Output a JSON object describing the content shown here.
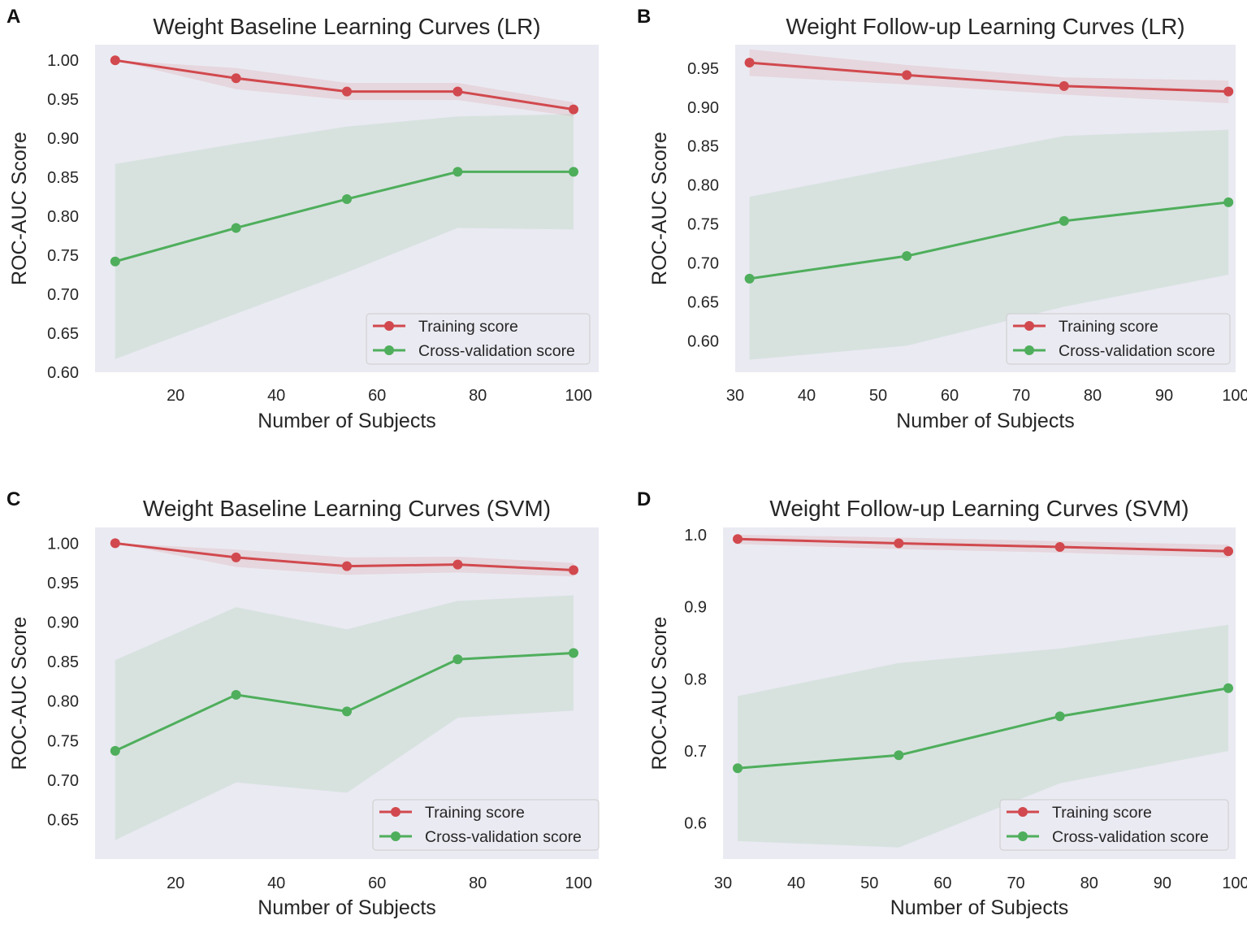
{
  "figure": {
    "colors": {
      "plot_bg": "#eaeaf2",
      "training": "#d1494e",
      "training_band": "#d1494e",
      "cv": "#4fae5c",
      "cv_band": "#4fae5c",
      "legend_bg": "#eaeaf2",
      "legend_border": "#cccccc"
    },
    "panels": [
      {
        "letter": "A",
        "chart_data": {
          "type": "line",
          "title": "Weight Baseline Learning Curves (LR)",
          "xlabel": "Number of Subjects",
          "ylabel": "ROC-AUC Score",
          "xlim": [
            4,
            104
          ],
          "ylim": [
            0.6,
            1.02
          ],
          "xticks": [
            "20",
            "40",
            "60",
            "80",
            "100"
          ],
          "yticks": [
            "0.60",
            "0.65",
            "0.70",
            "0.75",
            "0.80",
            "0.85",
            "0.90",
            "0.95",
            "1.00"
          ],
          "legend_position": "lower-right",
          "grid": false,
          "x": [
            8,
            32,
            54,
            76,
            99
          ],
          "series": [
            {
              "name": "Training score",
              "values": [
                1.0,
                0.977,
                0.96,
                0.96,
                0.937
              ],
              "band_lower": [
                1.0,
                0.963,
                0.949,
                0.949,
                0.928
              ],
              "band_upper": [
                1.0,
                0.99,
                0.971,
                0.971,
                0.946
              ]
            },
            {
              "name": "Cross-validation score",
              "values": [
                0.742,
                0.785,
                0.822,
                0.857,
                0.857
              ],
              "band_lower": [
                0.617,
                0.675,
                0.728,
                0.785,
                0.783
              ],
              "band_upper": [
                0.867,
                0.893,
                0.915,
                0.928,
                0.931
              ]
            }
          ]
        }
      },
      {
        "letter": "B",
        "chart_data": {
          "type": "line",
          "title": "Weight Follow-up Learning Curves (LR)",
          "xlabel": "Number of Subjects",
          "ylabel": "ROC-AUC Score",
          "xlim": [
            30,
            100
          ],
          "ylim": [
            0.56,
            0.98
          ],
          "xticks": [
            "30",
            "40",
            "50",
            "60",
            "70",
            "80",
            "90",
            "100"
          ],
          "yticks": [
            "0.60",
            "0.65",
            "0.70",
            "0.75",
            "0.80",
            "0.85",
            "0.90",
            "0.95"
          ],
          "legend_position": "lower-right",
          "grid": false,
          "x": [
            32,
            54,
            76,
            99
          ],
          "series": [
            {
              "name": "Training score",
              "values": [
                0.957,
                0.941,
                0.927,
                0.92
              ],
              "band_lower": [
                0.94,
                0.929,
                0.916,
                0.905
              ],
              "band_upper": [
                0.974,
                0.954,
                0.938,
                0.934
              ]
            },
            {
              "name": "Cross-validation score",
              "values": [
                0.68,
                0.709,
                0.754,
                0.778
              ],
              "band_lower": [
                0.576,
                0.594,
                0.644,
                0.685
              ],
              "band_upper": [
                0.785,
                0.824,
                0.863,
                0.871
              ]
            }
          ]
        }
      },
      {
        "letter": "C",
        "chart_data": {
          "type": "line",
          "title": "Weight Baseline Learning Curves (SVM)",
          "xlabel": "Number of Subjects",
          "ylabel": "ROC-AUC Score",
          "xlim": [
            4,
            104
          ],
          "ylim": [
            0.6,
            1.02
          ],
          "xticks": [
            "20",
            "40",
            "60",
            "80",
            "100"
          ],
          "yticks": [
            "0.65",
            "0.70",
            "0.75",
            "0.80",
            "0.85",
            "0.90",
            "0.95",
            "1.00"
          ],
          "legend_position": "lower-right",
          "grid": false,
          "x": [
            8,
            32,
            54,
            76,
            99
          ],
          "series": [
            {
              "name": "Training score",
              "values": [
                1.0,
                0.982,
                0.971,
                0.973,
                0.966
              ],
              "band_lower": [
                1.0,
                0.97,
                0.96,
                0.963,
                0.958
              ],
              "band_upper": [
                1.0,
                0.992,
                0.982,
                0.983,
                0.975
              ]
            },
            {
              "name": "Cross-validation score",
              "values": [
                0.737,
                0.808,
                0.787,
                0.853,
                0.861
              ],
              "band_lower": [
                0.624,
                0.697,
                0.684,
                0.779,
                0.788
              ],
              "band_upper": [
                0.852,
                0.919,
                0.891,
                0.927,
                0.934
              ]
            }
          ]
        }
      },
      {
        "letter": "D",
        "chart_data": {
          "type": "line",
          "title": "Weight Follow-up Learning Curves (SVM)",
          "xlabel": "Number of Subjects",
          "ylabel": "ROC-AUC Score",
          "xlim": [
            30,
            100
          ],
          "ylim": [
            0.55,
            1.01
          ],
          "xticks": [
            "30",
            "40",
            "50",
            "60",
            "70",
            "80",
            "90",
            "100"
          ],
          "yticks": [
            "0.6",
            "0.7",
            "0.8",
            "0.9",
            "1.0"
          ],
          "legend_position": "lower-right",
          "grid": false,
          "x": [
            32,
            54,
            76,
            99
          ],
          "series": [
            {
              "name": "Training score",
              "values": [
                0.994,
                0.988,
                0.983,
                0.977
              ],
              "band_lower": [
                0.987,
                0.98,
                0.975,
                0.968
              ],
              "band_upper": [
                1.0,
                0.996,
                0.991,
                0.986
              ]
            },
            {
              "name": "Cross-validation score",
              "values": [
                0.676,
                0.694,
                0.748,
                0.787
              ],
              "band_lower": [
                0.575,
                0.566,
                0.655,
                0.7
              ],
              "band_upper": [
                0.776,
                0.822,
                0.842,
                0.875
              ]
            }
          ]
        }
      }
    ]
  }
}
